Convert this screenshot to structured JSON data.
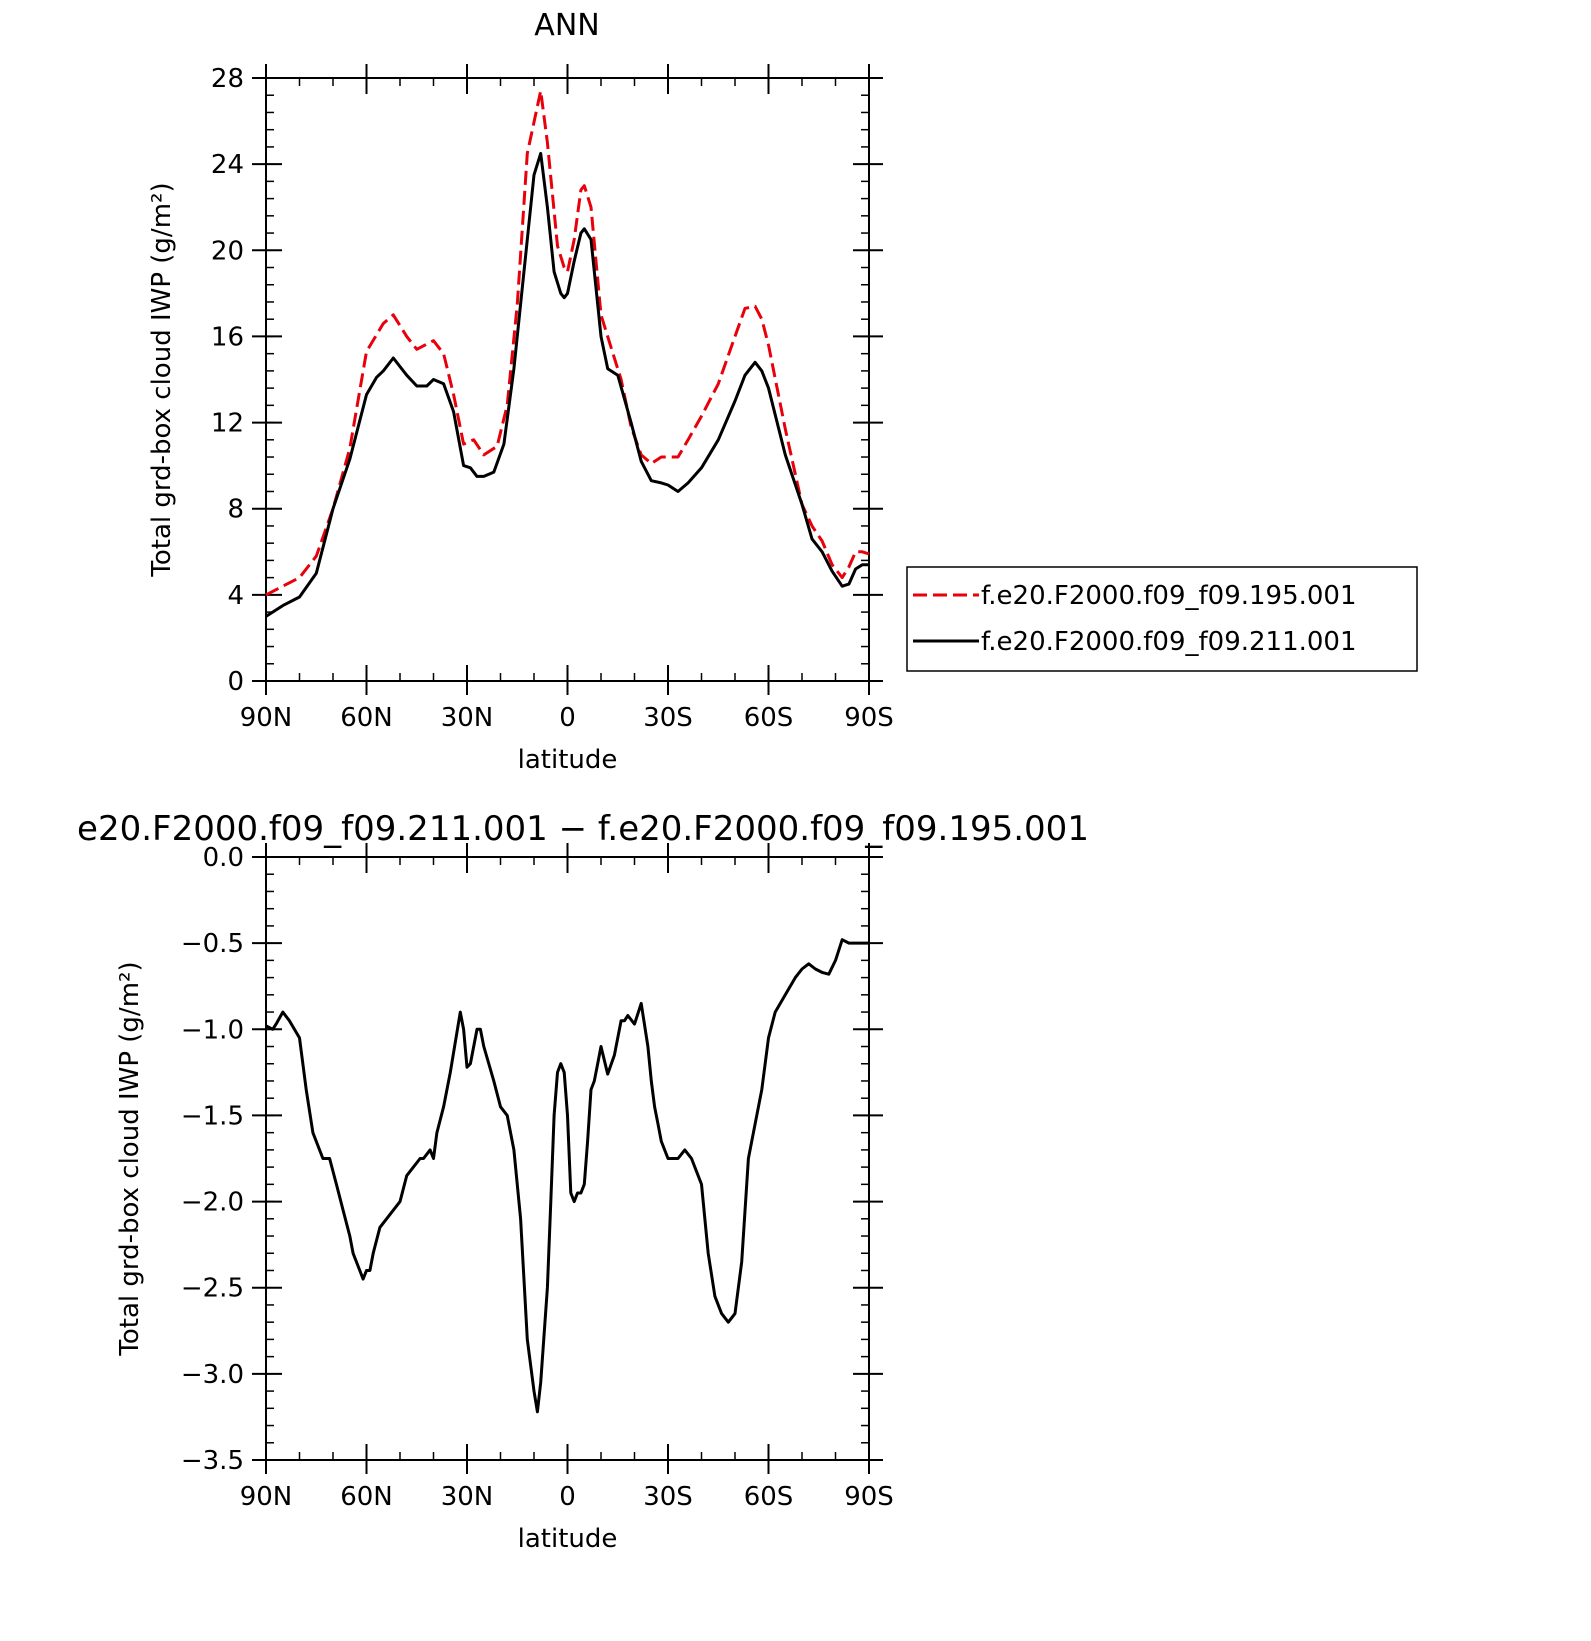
{
  "chart_data": [
    {
      "type": "line",
      "title": "ANN",
      "xlabel": "latitude",
      "ylabel": "Total grd-box cloud IWP (g/m²)",
      "xlim": [
        90,
        -90
      ],
      "ylim": [
        0,
        28
      ],
      "x_ticks": [
        {
          "value": 90,
          "label": "90N"
        },
        {
          "value": 60,
          "label": "60N"
        },
        {
          "value": 30,
          "label": "30N"
        },
        {
          "value": 0,
          "label": "0"
        },
        {
          "value": -30,
          "label": "30S"
        },
        {
          "value": -60,
          "label": "60S"
        },
        {
          "value": -90,
          "label": "90S"
        }
      ],
      "y_ticks": [
        {
          "value": 0,
          "label": "0"
        },
        {
          "value": 4,
          "label": "4"
        },
        {
          "value": 8,
          "label": "8"
        },
        {
          "value": 12,
          "label": "12"
        },
        {
          "value": 16,
          "label": "16"
        },
        {
          "value": 20,
          "label": "20"
        },
        {
          "value": 24,
          "label": "24"
        },
        {
          "value": 28,
          "label": "28"
        }
      ],
      "legend": "right",
      "series": [
        {
          "name": "f.e20.F2000.f09_f09.195.001",
          "color": "#e8000b",
          "dash": true,
          "x": [
            90,
            85,
            80,
            75,
            70,
            65,
            60,
            55,
            52,
            48,
            45,
            40,
            37,
            34,
            31,
            28,
            25,
            21,
            18,
            15,
            12,
            8,
            6,
            3,
            1,
            0,
            -2,
            -4,
            -5,
            -7,
            -10,
            -13,
            -16,
            -19,
            -22,
            -25,
            -28,
            -30,
            -33,
            -36,
            -40,
            -45,
            -50,
            -53,
            -56,
            -58,
            -60,
            -65,
            -70,
            -73,
            -76,
            -79,
            -82,
            -84,
            -86,
            -88,
            -90
          ],
          "y": [
            4.0,
            4.4,
            4.8,
            5.8,
            8.0,
            10.8,
            15.3,
            16.6,
            17.0,
            16.0,
            15.4,
            15.8,
            15.2,
            13.3,
            11.0,
            11.2,
            10.5,
            10.9,
            12.8,
            17.5,
            24.5,
            27.4,
            25.0,
            20.2,
            19.2,
            19.0,
            20.5,
            22.8,
            23.0,
            22.0,
            17.0,
            15.5,
            14.0,
            11.8,
            10.5,
            10.1,
            10.4,
            10.4,
            10.4,
            11.2,
            12.3,
            13.8,
            16.0,
            17.3,
            17.4,
            16.8,
            15.6,
            11.7,
            8.2,
            7.2,
            6.5,
            5.4,
            4.8,
            5.3,
            6.0,
            6.0,
            5.9
          ]
        },
        {
          "name": "f.e20.F2000.f09_f09.211.001",
          "color": "#000000",
          "dash": false,
          "x": [
            90,
            85,
            80,
            75,
            70,
            65,
            60,
            57,
            55,
            52,
            48,
            45,
            42,
            40,
            37,
            34,
            31,
            29,
            27,
            25,
            22,
            19,
            16,
            12,
            10,
            8,
            6,
            4,
            2,
            1,
            0,
            -2,
            -4,
            -5,
            -7,
            -10,
            -12,
            -15,
            -19,
            -22,
            -25,
            -28,
            -30,
            -33,
            -36,
            -40,
            -45,
            -50,
            -53,
            -56,
            -58,
            -60,
            -65,
            -70,
            -73,
            -76,
            -79,
            -82,
            -84,
            -86,
            -88,
            -90
          ],
          "y": [
            3.0,
            3.5,
            3.9,
            5.0,
            8.0,
            10.3,
            13.3,
            14.1,
            14.4,
            15.0,
            14.2,
            13.7,
            13.7,
            14.0,
            13.8,
            12.5,
            10.0,
            9.9,
            9.5,
            9.5,
            9.7,
            11.0,
            14.5,
            20.5,
            23.5,
            24.5,
            22.0,
            19.0,
            18.0,
            17.8,
            18.0,
            19.5,
            20.8,
            21.0,
            20.5,
            16.0,
            14.5,
            14.2,
            12.0,
            10.2,
            9.3,
            9.2,
            9.1,
            8.8,
            9.2,
            9.9,
            11.2,
            13.0,
            14.2,
            14.8,
            14.4,
            13.6,
            10.5,
            8.2,
            6.6,
            6.0,
            5.1,
            4.4,
            4.5,
            5.2,
            5.4,
            5.4
          ]
        }
      ]
    },
    {
      "type": "line",
      "title": "e20.F2000.f09_f09.211.001 − f.e20.F2000.f09_f09.195.001",
      "xlabel": "latitude",
      "ylabel": "Total grd-box cloud IWP (g/m²)",
      "xlim": [
        90,
        -90
      ],
      "ylim": [
        -3.5,
        0.0
      ],
      "x_ticks": [
        {
          "value": 90,
          "label": "90N"
        },
        {
          "value": 60,
          "label": "60N"
        },
        {
          "value": 30,
          "label": "30N"
        },
        {
          "value": 0,
          "label": "0"
        },
        {
          "value": -30,
          "label": "30S"
        },
        {
          "value": -60,
          "label": "60S"
        },
        {
          "value": -90,
          "label": "90S"
        }
      ],
      "y_ticks": [
        {
          "value": 0.0,
          "label": "0.0"
        },
        {
          "value": -0.5,
          "label": "−0.5"
        },
        {
          "value": -1.0,
          "label": "−1.0"
        },
        {
          "value": -1.5,
          "label": "−1.5"
        },
        {
          "value": -2.0,
          "label": "−2.0"
        },
        {
          "value": -2.5,
          "label": "−2.5"
        },
        {
          "value": -3.0,
          "label": "−3.0"
        },
        {
          "value": -3.5,
          "label": "−3.5"
        }
      ],
      "series": [
        {
          "color": "#000000",
          "dash": false,
          "x": [
            90,
            88,
            87,
            85,
            83,
            80,
            78,
            76,
            73,
            71,
            69,
            67,
            65,
            64,
            62,
            61,
            60,
            59,
            58,
            56,
            54,
            52,
            50,
            48,
            46,
            44,
            43,
            41,
            40,
            39,
            37,
            35,
            32,
            31,
            30,
            29,
            27,
            26,
            25,
            22,
            20,
            18,
            16,
            14,
            12,
            10,
            9,
            8,
            6,
            5,
            4,
            3,
            2,
            1,
            0,
            -1,
            -2,
            -3,
            -4,
            -5,
            -6,
            -7,
            -8,
            -9,
            -10,
            -12,
            -14,
            -16,
            -17,
            -18,
            -20,
            -22,
            -24,
            -25,
            -26,
            -27,
            -28,
            -30,
            -33,
            -35,
            -37,
            -40,
            -42,
            -44,
            -46,
            -48,
            -50,
            -52,
            -54,
            -56,
            -58,
            -60,
            -62,
            -65,
            -68,
            -70,
            -72,
            -74,
            -76,
            -78,
            -80,
            -82,
            -84,
            -86,
            -88,
            -90
          ],
          "y": [
            -0.98,
            -1.0,
            -0.97,
            -0.9,
            -0.95,
            -1.05,
            -1.35,
            -1.6,
            -1.75,
            -1.75,
            -1.9,
            -2.05,
            -2.2,
            -2.3,
            -2.4,
            -2.45,
            -2.4,
            -2.4,
            -2.3,
            -2.15,
            -2.1,
            -2.05,
            -2.0,
            -1.85,
            -1.8,
            -1.75,
            -1.75,
            -1.7,
            -1.75,
            -1.6,
            -1.45,
            -1.25,
            -0.9,
            -1.0,
            -1.22,
            -1.2,
            -1.0,
            -1.0,
            -1.1,
            -1.3,
            -1.45,
            -1.5,
            -1.7,
            -2.1,
            -2.8,
            -3.1,
            -3.22,
            -3.05,
            -2.5,
            -2.0,
            -1.5,
            -1.25,
            -1.2,
            -1.25,
            -1.5,
            -1.95,
            -2.0,
            -1.95,
            -1.95,
            -1.9,
            -1.65,
            -1.35,
            -1.3,
            -1.2,
            -1.1,
            -1.26,
            -1.15,
            -0.95,
            -0.95,
            -0.92,
            -0.97,
            -0.85,
            -1.1,
            -1.3,
            -1.45,
            -1.55,
            -1.65,
            -1.75,
            -1.75,
            -1.7,
            -1.75,
            -1.9,
            -2.3,
            -2.55,
            -2.65,
            -2.7,
            -2.65,
            -2.35,
            -1.75,
            -1.55,
            -1.35,
            -1.05,
            -0.9,
            -0.8,
            -0.7,
            -0.65,
            -0.62,
            -0.65,
            -0.67,
            -0.68,
            -0.6,
            -0.48,
            -0.5,
            -0.5,
            -0.5,
            -0.5
          ]
        }
      ]
    }
  ]
}
